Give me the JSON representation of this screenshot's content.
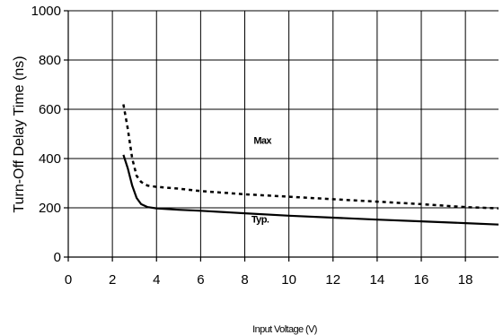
{
  "chart_data": {
    "type": "line",
    "xlabel": "Input Voltage (V)",
    "ylabel": "Turn-Off Delay Time (ns)",
    "xlim": [
      0,
      19.5
    ],
    "ylim": [
      0,
      1000
    ],
    "x_ticks": [
      0,
      2,
      4,
      6,
      8,
      10,
      12,
      14,
      16,
      18
    ],
    "y_ticks": [
      0,
      200,
      400,
      600,
      800,
      1000
    ],
    "grid": true,
    "legend": "none",
    "series": [
      {
        "name": "Max",
        "style": "dashed",
        "x": [
          2.5,
          2.7,
          2.9,
          3.1,
          3.3,
          3.6,
          4.0,
          5.0,
          6.0,
          8.0,
          10.0,
          12.0,
          14.0,
          16.0,
          18.0,
          19.5
        ],
        "values": [
          620,
          520,
          400,
          330,
          305,
          290,
          285,
          278,
          268,
          255,
          245,
          235,
          225,
          215,
          203,
          198
        ]
      },
      {
        "name": "Typ.",
        "style": "solid",
        "x": [
          2.5,
          2.7,
          2.9,
          3.1,
          3.3,
          3.6,
          4.0,
          5.0,
          6.0,
          8.0,
          10.0,
          12.0,
          14.0,
          16.0,
          18.0,
          19.5
        ],
        "values": [
          415,
          360,
          290,
          240,
          215,
          203,
          198,
          192,
          188,
          178,
          168,
          160,
          152,
          145,
          138,
          132
        ]
      }
    ],
    "annotations": [
      {
        "text": "Max",
        "x": 8.4,
        "y": 460
      },
      {
        "text": "Typ.",
        "x": 8.3,
        "y": 140
      }
    ]
  }
}
